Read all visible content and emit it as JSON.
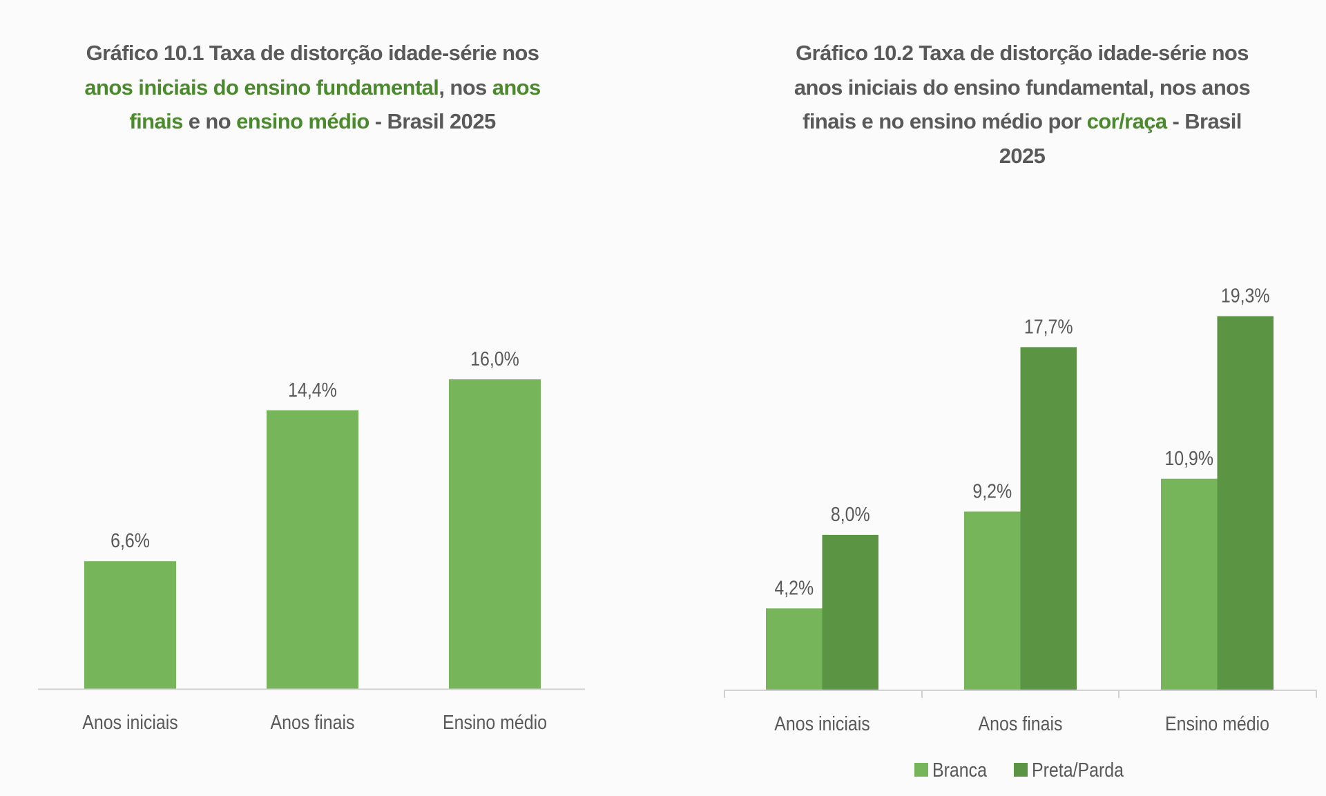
{
  "colors": {
    "title_text": "#595959",
    "title_highlight": "#4a8a2c",
    "branca": "#77b55a",
    "preta_parda": "#5b9442",
    "axis": "#d0d0d0"
  },
  "chart_data": [
    {
      "type": "bar",
      "title_lines": [
        [
          {
            "text": "Gráfico 10.1 Taxa de distorção idade-série nos",
            "hl": false
          }
        ],
        [
          {
            "text": "anos iniciais do ensino fundamental",
            "hl": true
          },
          {
            "text": ", nos ",
            "hl": false
          },
          {
            "text": "anos",
            "hl": true
          }
        ],
        [
          {
            "text": "finais",
            "hl": true
          },
          {
            "text": " e no ",
            "hl": false
          },
          {
            "text": "ensino médio",
            "hl": true
          },
          {
            "text": " - Brasil 2025",
            "hl": false
          }
        ]
      ],
      "categories": [
        "Anos iniciais",
        "Anos finais",
        "Ensino médio"
      ],
      "values": [
        6.6,
        14.4,
        16.0
      ],
      "data_labels": [
        "6,6%",
        "14,4%",
        "16,0%"
      ],
      "ylim": [
        0,
        20
      ],
      "grid": false,
      "legend": "none"
    },
    {
      "type": "bar",
      "title_lines": [
        [
          {
            "text": "Gráfico 10.2 Taxa de distorção idade-série nos",
            "hl": false
          }
        ],
        [
          {
            "text": "anos iniciais do ensino fundamental, nos anos",
            "hl": false
          }
        ],
        [
          {
            "text": "finais e no ensino médio por ",
            "hl": false
          },
          {
            "text": "cor/raça",
            "hl": true
          },
          {
            "text": " - Brasil",
            "hl": false
          }
        ],
        [
          {
            "text": "2025",
            "hl": false
          }
        ]
      ],
      "categories": [
        "Anos iniciais",
        "Anos finais",
        "Ensino médio"
      ],
      "series": [
        {
          "name": "Branca",
          "values": [
            4.2,
            9.2,
            10.9
          ],
          "data_labels": [
            "4,2%",
            "9,2%",
            "10,9%"
          ]
        },
        {
          "name": "Preta/Parda",
          "values": [
            8.0,
            17.7,
            19.3
          ],
          "data_labels": [
            "8,0%",
            "17,7%",
            "19,3%"
          ]
        }
      ],
      "ylim": [
        0,
        20
      ],
      "grid": false,
      "legend": "bottom"
    }
  ]
}
